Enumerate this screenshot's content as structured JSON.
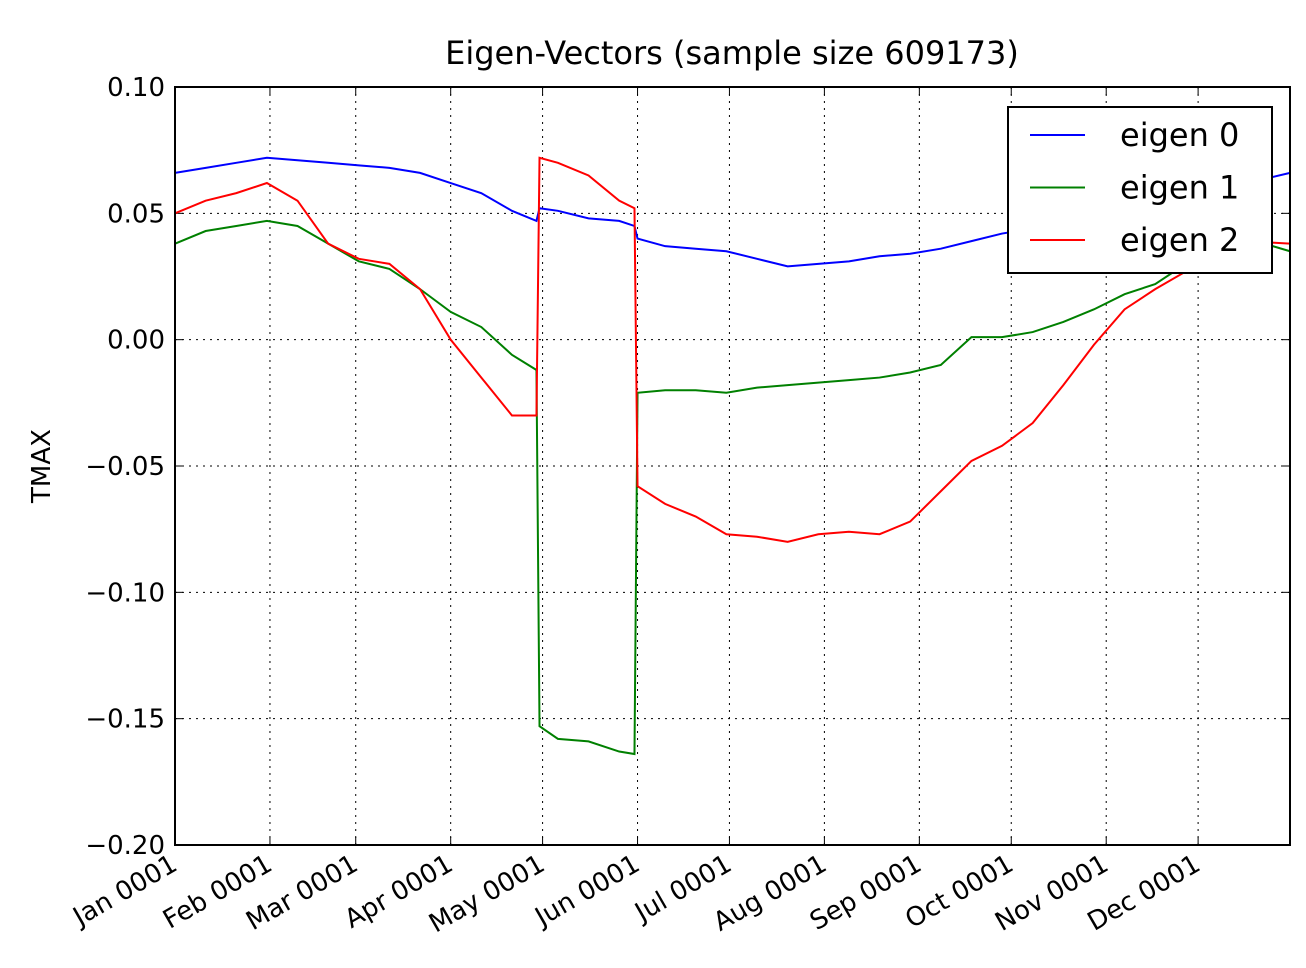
{
  "chart_data": {
    "type": "line",
    "title": "Eigen-Vectors (sample size 609173)",
    "ylabel": "TMAX",
    "x": [
      0,
      10,
      20,
      30,
      40,
      50,
      60,
      70,
      80,
      90,
      100,
      110,
      118,
      119,
      125,
      135,
      145,
      150,
      151,
      160,
      170,
      180,
      190,
      200,
      210,
      220,
      230,
      240,
      250,
      260,
      270,
      280,
      290,
      300,
      310,
      320,
      330,
      340,
      350,
      364
    ],
    "series": [
      {
        "name": "eigen 0",
        "color": "#0000ff",
        "values": [
          0.066,
          0.068,
          0.07,
          0.072,
          0.071,
          0.07,
          0.069,
          0.068,
          0.066,
          0.062,
          0.058,
          0.051,
          0.047,
          0.052,
          0.051,
          0.048,
          0.047,
          0.045,
          0.04,
          0.037,
          0.036,
          0.035,
          0.032,
          0.029,
          0.03,
          0.031,
          0.033,
          0.034,
          0.036,
          0.039,
          0.042,
          0.044,
          0.045,
          0.047,
          0.05,
          0.054,
          0.058,
          0.061,
          0.062,
          0.066
        ]
      },
      {
        "name": "eigen 1",
        "color": "#008000",
        "values": [
          0.038,
          0.043,
          0.045,
          0.047,
          0.045,
          0.038,
          0.031,
          0.028,
          0.02,
          0.011,
          0.005,
          -0.006,
          -0.012,
          -0.153,
          -0.158,
          -0.159,
          -0.163,
          -0.164,
          -0.021,
          -0.02,
          -0.02,
          -0.021,
          -0.019,
          -0.018,
          -0.017,
          -0.016,
          -0.015,
          -0.013,
          -0.01,
          0.001,
          0.001,
          0.003,
          0.007,
          0.012,
          0.018,
          0.022,
          0.03,
          0.04,
          0.04,
          0.035
        ]
      },
      {
        "name": "eigen 2",
        "color": "#ff0000",
        "values": [
          0.05,
          0.055,
          0.058,
          0.062,
          0.055,
          0.038,
          0.032,
          0.03,
          0.02,
          0.0,
          -0.015,
          -0.03,
          -0.03,
          0.072,
          0.07,
          0.065,
          0.055,
          0.052,
          -0.058,
          -0.065,
          -0.07,
          -0.077,
          -0.078,
          -0.08,
          -0.077,
          -0.076,
          -0.077,
          -0.072,
          -0.06,
          -0.048,
          -0.042,
          -0.033,
          -0.018,
          -0.002,
          0.012,
          0.02,
          0.027,
          0.035,
          0.039,
          0.038
        ]
      }
    ],
    "xlim": [
      0,
      364
    ],
    "xticks": [
      {
        "value": 0,
        "label": "Jan 0001"
      },
      {
        "value": 31,
        "label": "Feb 0001"
      },
      {
        "value": 59,
        "label": "Mar 0001"
      },
      {
        "value": 90,
        "label": "Apr 0001"
      },
      {
        "value": 120,
        "label": "May 0001"
      },
      {
        "value": 151,
        "label": "Jun 0001"
      },
      {
        "value": 181,
        "label": "Jul 0001"
      },
      {
        "value": 212,
        "label": "Aug 0001"
      },
      {
        "value": 243,
        "label": "Sep 0001"
      },
      {
        "value": 273,
        "label": "Oct 0001"
      },
      {
        "value": 304,
        "label": "Nov 0001"
      },
      {
        "value": 334,
        "label": "Dec 0001"
      }
    ],
    "ylim": [
      -0.2,
      0.1
    ],
    "yticks": [
      {
        "value": -0.2,
        "label": "−0.20"
      },
      {
        "value": -0.15,
        "label": "−0.15"
      },
      {
        "value": -0.1,
        "label": "−0.10"
      },
      {
        "value": -0.05,
        "label": "−0.05"
      },
      {
        "value": 0,
        "label": "0.00"
      },
      {
        "value": 0.05,
        "label": "0.05"
      },
      {
        "value": 0.1,
        "label": "0.10"
      }
    ],
    "grid": true,
    "legend": "upper right"
  }
}
